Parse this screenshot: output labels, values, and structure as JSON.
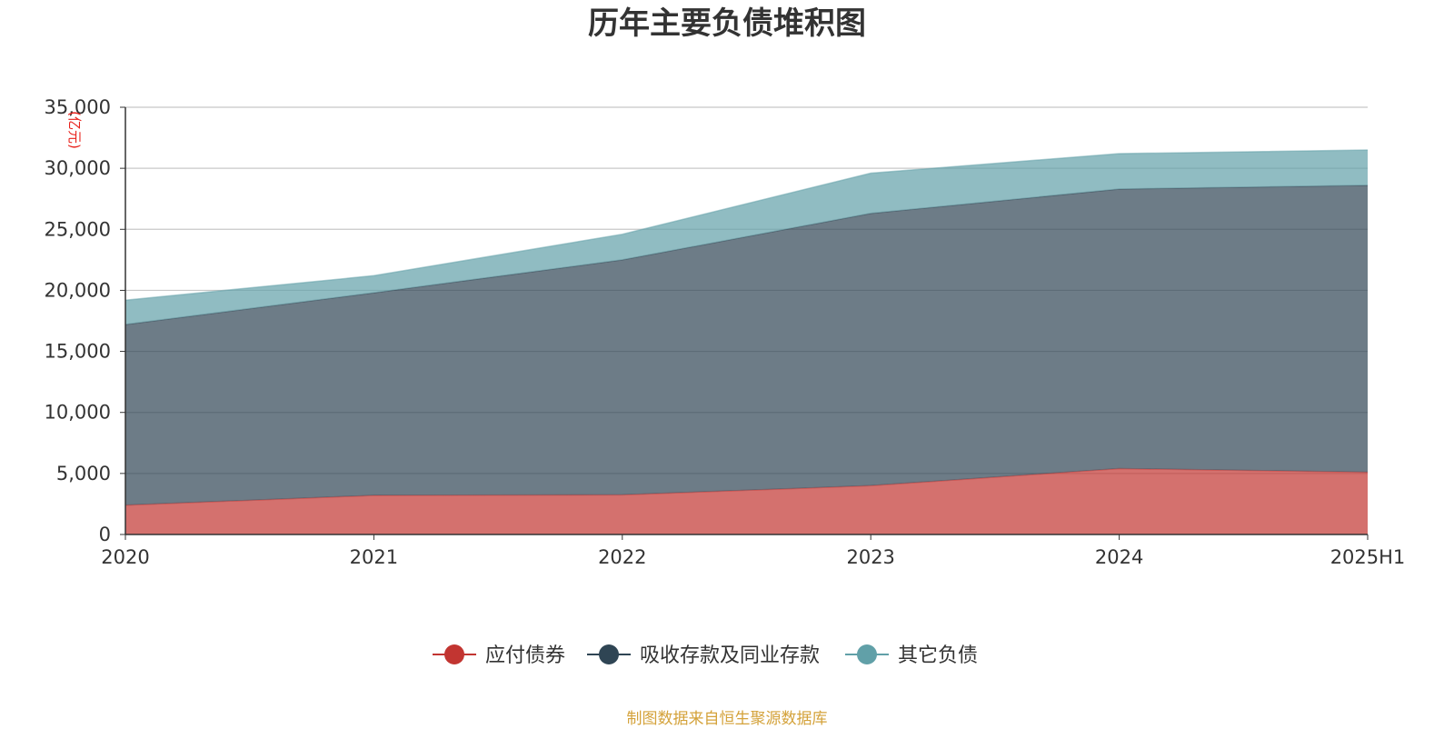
{
  "chart_data": {
    "type": "area",
    "stacked": true,
    "title": "历年主要负债堆积图",
    "unit_label": "(亿元)",
    "categories": [
      "2020",
      "2021",
      "2022",
      "2023",
      "2024",
      "2025H1"
    ],
    "y_ticks": [
      "0",
      "5,000",
      "10,000",
      "15,000",
      "20,000",
      "25,000",
      "30,000",
      "35,000"
    ],
    "ylim": [
      0,
      35000
    ],
    "grid": true,
    "legend_position": "bottom",
    "series": [
      {
        "name": "应付债券",
        "values": [
          2400,
          3200,
          3250,
          4000,
          5400,
          5100
        ],
        "color": "#c23531"
      },
      {
        "name": "吸收存款及同业存款",
        "values": [
          14800,
          16600,
          19250,
          22300,
          22900,
          23500
        ],
        "color": "#2f4554"
      },
      {
        "name": "其它负债",
        "values": [
          2000,
          1400,
          2100,
          3300,
          2900,
          2900
        ],
        "color": "#61a0a8"
      }
    ]
  },
  "source_note": "制图数据来自恒生聚源数据库"
}
